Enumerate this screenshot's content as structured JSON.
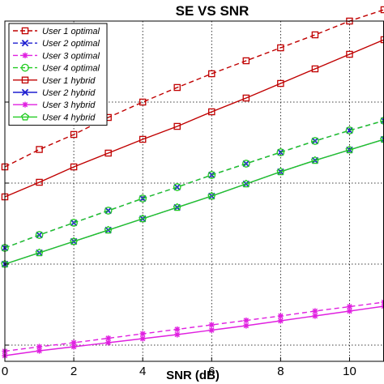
{
  "chart_data": {
    "type": "line",
    "title": "SE VS SNR",
    "xlabel": "SNR (dB)",
    "ylabel": "",
    "xlim": [
      0,
      11
    ],
    "ylim": [
      1.6,
      10
    ],
    "xticks": [
      0,
      2,
      4,
      6,
      8,
      10
    ],
    "xtick_labels": [
      "0",
      "2",
      "4",
      "6",
      "8",
      "10"
    ],
    "grid": "dotted",
    "legend_position": "top-left",
    "x": [
      0,
      1,
      2,
      3,
      4,
      5,
      6,
      7,
      8,
      9,
      10,
      11
    ],
    "series": [
      {
        "name": "User 1 optimal",
        "color": "#c00000",
        "line": "dashed",
        "marker": "square",
        "values": [
          6.4,
          6.83,
          7.2,
          7.62,
          8.0,
          8.36,
          8.7,
          9.02,
          9.34,
          9.66,
          10.0,
          10.28
        ]
      },
      {
        "name": "User 2 optimal",
        "color": "#1f1fd1",
        "line": "dashed",
        "marker": "x",
        "values": [
          4.4,
          4.72,
          5.02,
          5.32,
          5.62,
          5.9,
          6.2,
          6.48,
          6.76,
          7.04,
          7.3,
          7.54
        ]
      },
      {
        "name": "User 3 optimal",
        "color": "#e020e0",
        "line": "dashed",
        "marker": "star",
        "values": [
          1.85,
          1.96,
          2.06,
          2.17,
          2.28,
          2.39,
          2.5,
          2.61,
          2.72,
          2.84,
          2.95,
          3.06
        ]
      },
      {
        "name": "User 4 optimal",
        "color": "#22cc22",
        "line": "dashed",
        "marker": "circle",
        "values": [
          4.4,
          4.72,
          5.02,
          5.32,
          5.62,
          5.9,
          6.2,
          6.48,
          6.76,
          7.04,
          7.3,
          7.54
        ]
      },
      {
        "name": "User 1 hybrid",
        "color": "#c00000",
        "line": "solid",
        "marker": "square",
        "values": [
          5.66,
          6.02,
          6.4,
          6.74,
          7.08,
          7.4,
          7.76,
          8.1,
          8.46,
          8.82,
          9.18,
          9.54
        ]
      },
      {
        "name": "User 2 hybrid",
        "color": "#1f1fd1",
        "line": "solid",
        "marker": "x",
        "values": [
          4.0,
          4.28,
          4.56,
          4.84,
          5.12,
          5.4,
          5.68,
          5.98,
          6.28,
          6.56,
          6.82,
          7.08
        ]
      },
      {
        "name": "User 3 hybrid",
        "color": "#e020e0",
        "line": "solid",
        "marker": "star",
        "values": [
          1.74,
          1.86,
          1.96,
          2.06,
          2.16,
          2.26,
          2.37,
          2.48,
          2.6,
          2.72,
          2.84,
          2.96
        ]
      },
      {
        "name": "User 4 hybrid",
        "color": "#22cc22",
        "line": "solid",
        "marker": "pentagon",
        "values": [
          4.0,
          4.28,
          4.56,
          4.84,
          5.12,
          5.4,
          5.68,
          5.98,
          6.28,
          6.56,
          6.82,
          7.08
        ]
      }
    ]
  }
}
